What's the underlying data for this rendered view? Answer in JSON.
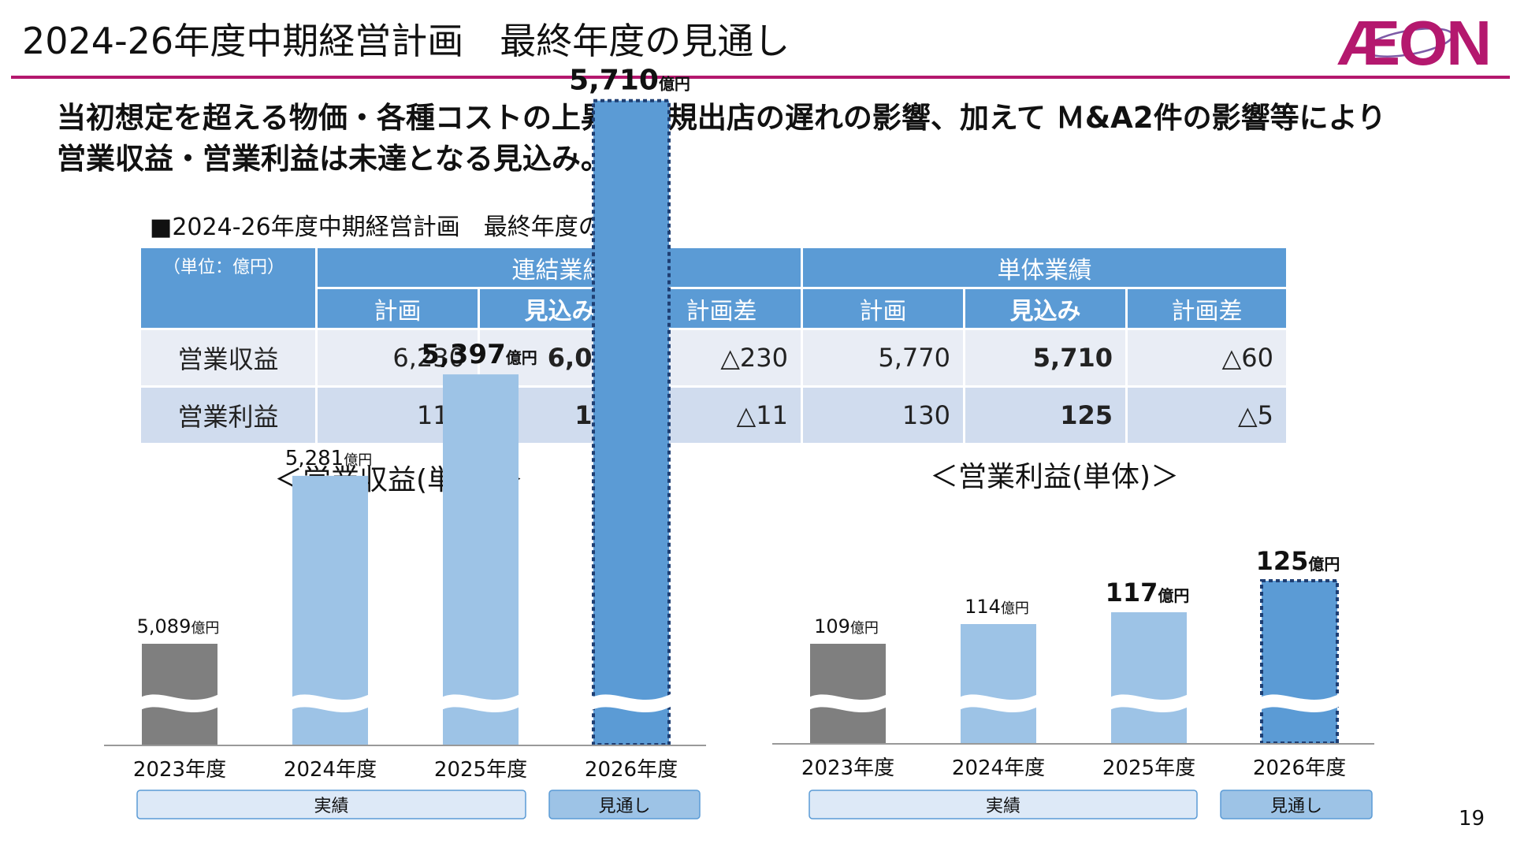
{
  "slide": {
    "title": "2024-26年度中期経営計画　最終年度の見通し",
    "lead_line1": "当初想定を超える物価・各種コストの上昇、新規出店の遅れの影響、加えて Ｍ&A2件の影響等により",
    "lead_line2": "営業収益・営業利益は未達となる見込み。",
    "page_number": "19",
    "logo_text": "ÆON",
    "accent_color": "#b4186e"
  },
  "table": {
    "heading": "■2024-26年度中期経営計画　最終年度の見通し",
    "unit": "（単位：億円）",
    "group_consolidated": "連結業績",
    "group_standalone": "単体業績",
    "col_plan": "計画",
    "col_forecast": "見込み",
    "col_diff": "計画差",
    "rows": [
      {
        "label": "営業収益",
        "cons_plan": "6,230",
        "cons_forecast": "6,000",
        "cons_diff": "△230",
        "single_plan": "5,770",
        "single_forecast": "5,710",
        "single_diff": "△60"
      },
      {
        "label": "営業利益",
        "cons_plan": "119",
        "cons_forecast": "108",
        "cons_diff": "△11",
        "single_plan": "130",
        "single_forecast": "125",
        "single_diff": "△5"
      }
    ]
  },
  "chart_data": [
    {
      "type": "bar",
      "title": "＜営業収益(単体)＞",
      "categories": [
        "2023年度",
        "2024年度",
        "2025年度",
        "2026年度"
      ],
      "values": [
        5089,
        5281,
        5397,
        5710
      ],
      "value_labels": [
        "5,089",
        "5,281",
        "5,397",
        "5,710"
      ],
      "unit": "億円",
      "axis_broken": true,
      "bar_colors": [
        "#7f7f7f",
        "#9dc3e6",
        "#9dc3e6",
        "#5b9bd5"
      ],
      "forecast_index": 3,
      "groups": [
        {
          "label": "実績",
          "span": [
            0,
            2
          ]
        },
        {
          "label": "見通し",
          "span": [
            3,
            3
          ]
        }
      ]
    },
    {
      "type": "bar",
      "title": "＜営業利益(単体)＞",
      "categories": [
        "2023年度",
        "2024年度",
        "2025年度",
        "2026年度"
      ],
      "values": [
        109,
        114,
        117,
        125
      ],
      "value_labels": [
        "109",
        "114",
        "117",
        "125"
      ],
      "unit": "億円",
      "axis_broken": true,
      "bar_colors": [
        "#7f7f7f",
        "#9dc3e6",
        "#9dc3e6",
        "#5b9bd5"
      ],
      "forecast_index": 3,
      "groups": [
        {
          "label": "実績",
          "span": [
            0,
            2
          ]
        },
        {
          "label": "見通し",
          "span": [
            3,
            3
          ]
        }
      ]
    }
  ]
}
